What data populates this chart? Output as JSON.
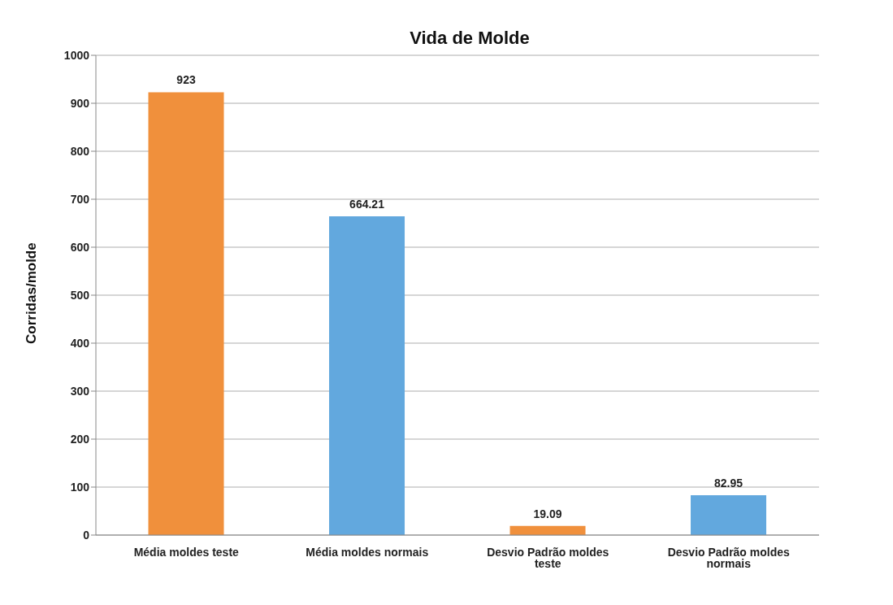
{
  "chart_data": {
    "type": "bar",
    "title": "Vida de Molde",
    "ylabel": "Corridas/molde",
    "categories": [
      "Média moldes teste",
      "Média moldes normais",
      "Desvio Padrão moldes teste",
      "Desvio Padrão moldes normais"
    ],
    "values": [
      923,
      664.21,
      19.09,
      82.95
    ],
    "colors": [
      "#f0903c",
      "#62a8de",
      "#f0903c",
      "#62a8de"
    ],
    "ylim": [
      0,
      1000
    ],
    "yticks": [
      0,
      100,
      200,
      300,
      400,
      500,
      600,
      700,
      800,
      900,
      1000
    ],
    "grid": "y",
    "data_labels": true,
    "legend": false
  }
}
